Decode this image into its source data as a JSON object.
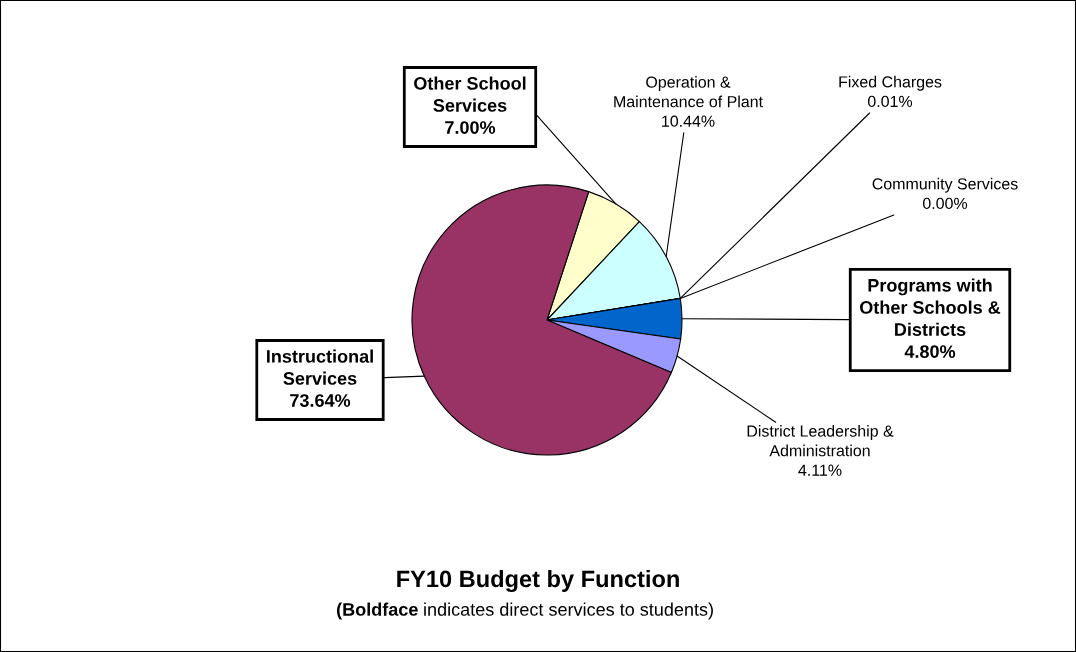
{
  "chart_data": {
    "type": "pie",
    "title": "FY10 Budget by Function",
    "subtitle": "(Boldface indicates direct services to students)",
    "categories": [
      "Other School\nServices",
      "Operation &\nMaintenance of Plant",
      "Fixed Charges",
      "Community Services",
      "Programs with\nOther Schools &\nDistricts",
      "District Leadership &\nAdministration",
      "Instructional\nServices"
    ],
    "values": [
      7.0,
      10.44,
      0.01,
      0.0,
      4.8,
      4.11,
      73.64
    ],
    "value_labels": [
      "7.00%",
      "10.44%",
      "0.01%",
      "0.00%",
      "4.80%",
      "4.11%",
      "73.64%"
    ],
    "colors": [
      "#ffffcc",
      "#ccffff",
      "#660066",
      "#ff8080",
      "#0066cc",
      "#9999ff",
      "#993366"
    ],
    "legend": false
  }
}
